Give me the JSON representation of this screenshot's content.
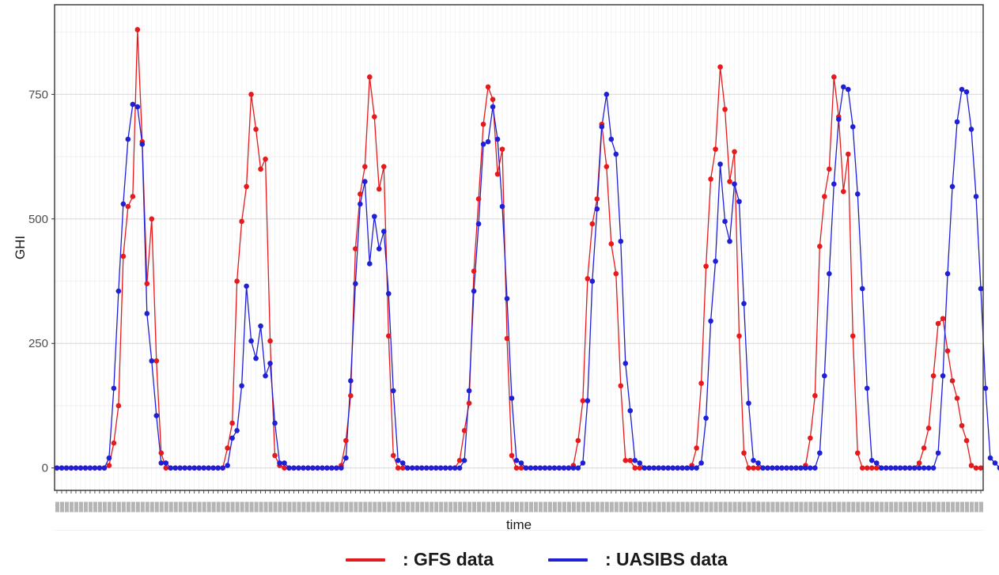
{
  "chart_data": {
    "type": "line",
    "xlabel": "time",
    "ylabel": "GHI",
    "yticks": [
      0,
      250,
      500,
      750
    ],
    "ylim": [
      -45,
      930
    ],
    "grid": true,
    "legend_position": "bottom",
    "series": [
      {
        "name": ": GFS data",
        "color": "#e41a1c",
        "values": [
          0,
          0,
          0,
          0,
          0,
          0,
          0,
          0,
          0,
          0,
          0,
          5,
          50,
          125,
          425,
          525,
          545,
          880,
          655,
          370,
          500,
          215,
          30,
          0,
          0,
          0,
          0,
          0,
          0,
          0,
          0,
          0,
          0,
          0,
          0,
          0,
          40,
          90,
          375,
          495,
          565,
          750,
          680,
          600,
          620,
          255,
          25,
          5,
          0,
          0,
          0,
          0,
          0,
          0,
          0,
          0,
          0,
          0,
          0,
          0,
          5,
          55,
          145,
          440,
          550,
          605,
          785,
          705,
          560,
          605,
          265,
          25,
          0,
          0,
          0,
          0,
          0,
          0,
          0,
          0,
          0,
          0,
          0,
          0,
          0,
          15,
          75,
          130,
          395,
          540,
          690,
          765,
          740,
          590,
          640,
          260,
          25,
          0,
          0,
          0,
          0,
          0,
          0,
          0,
          0,
          0,
          0,
          0,
          0,
          5,
          55,
          135,
          380,
          490,
          540,
          690,
          605,
          450,
          390,
          165,
          15,
          15,
          0,
          0,
          0,
          0,
          0,
          0,
          0,
          0,
          0,
          0,
          0,
          0,
          5,
          40,
          170,
          405,
          580,
          640,
          805,
          720,
          575,
          635,
          265,
          30,
          0,
          0,
          0,
          0,
          0,
          0,
          0,
          0,
          0,
          0,
          0,
          0,
          5,
          60,
          145,
          445,
          545,
          600,
          785,
          705,
          555,
          630,
          265,
          30,
          0,
          0,
          0,
          0,
          0,
          0,
          0,
          0,
          0,
          0,
          0,
          0,
          10,
          40,
          80,
          185,
          290,
          300,
          235,
          175,
          140,
          85,
          55,
          5,
          0,
          0
        ],
        "label": ": GFS data"
      },
      {
        "name": ": UASIBS data",
        "color": "#1f1fd6",
        "values": [
          0,
          0,
          0,
          0,
          0,
          0,
          0,
          0,
          0,
          0,
          0,
          20,
          160,
          355,
          530,
          660,
          730,
          725,
          650,
          310,
          215,
          105,
          10,
          10,
          0,
          0,
          0,
          0,
          0,
          0,
          0,
          0,
          0,
          0,
          0,
          0,
          5,
          60,
          75,
          165,
          365,
          255,
          220,
          285,
          185,
          210,
          90,
          10,
          10,
          0,
          0,
          0,
          0,
          0,
          0,
          0,
          0,
          0,
          0,
          0,
          0,
          20,
          175,
          370,
          530,
          575,
          410,
          505,
          440,
          475,
          350,
          155,
          15,
          10,
          0,
          0,
          0,
          0,
          0,
          0,
          0,
          0,
          0,
          0,
          0,
          0,
          15,
          155,
          355,
          490,
          650,
          655,
          725,
          660,
          525,
          340,
          140,
          15,
          10,
          0,
          0,
          0,
          0,
          0,
          0,
          0,
          0,
          0,
          0,
          0,
          0,
          10,
          135,
          375,
          520,
          685,
          750,
          660,
          630,
          455,
          210,
          115,
          15,
          10,
          0,
          0,
          0,
          0,
          0,
          0,
          0,
          0,
          0,
          0,
          0,
          0,
          10,
          100,
          295,
          415,
          610,
          495,
          455,
          570,
          535,
          330,
          130,
          15,
          10,
          0,
          0,
          0,
          0,
          0,
          0,
          0,
          0,
          0,
          0,
          0,
          0,
          30,
          185,
          390,
          570,
          700,
          765,
          760,
          685,
          550,
          360,
          160,
          15,
          10,
          0,
          0,
          0,
          0,
          0,
          0,
          0,
          0,
          0,
          0,
          0,
          0,
          30,
          185,
          390,
          565,
          695,
          760,
          755,
          680,
          545,
          360,
          160,
          20,
          10,
          0
        ],
        "label": ": UASIBS data"
      }
    ]
  }
}
